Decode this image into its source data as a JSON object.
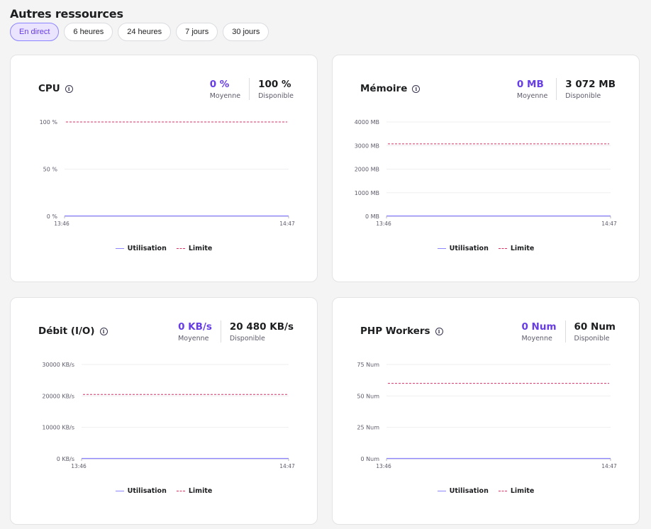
{
  "page": {
    "title": "Autres ressources"
  },
  "range_tabs": [
    {
      "label": "En direct",
      "active": true
    },
    {
      "label": "6 heures",
      "active": false
    },
    {
      "label": "24 heures",
      "active": false
    },
    {
      "label": "7 jours",
      "active": false
    },
    {
      "label": "30 jours",
      "active": false
    }
  ],
  "legend": {
    "usage_label": "Utilisation",
    "limit_label": "Limite"
  },
  "colors": {
    "accent": "#673de6",
    "usage_line": "#8c85ff",
    "limit_line": "#d63163"
  },
  "cards": [
    {
      "title": "CPU",
      "stats": [
        {
          "value": "0 %",
          "label": "Moyenne"
        },
        {
          "value": "100 %",
          "label": "Disponible"
        }
      ]
    },
    {
      "title": "Mémoire",
      "stats": [
        {
          "value": "0 MB",
          "label": "Moyenne"
        },
        {
          "value": "3 072 MB",
          "label": "Disponible"
        }
      ]
    },
    {
      "title": "Débit (I/O)",
      "stats": [
        {
          "value": "0 KB/s",
          "label": "Moyenne"
        },
        {
          "value": "20 480 KB/s",
          "label": "Disponible"
        }
      ]
    },
    {
      "title": "PHP Workers",
      "stats": [
        {
          "value": "0 Num",
          "label": "Moyenne"
        },
        {
          "value": "60 Num",
          "label": "Disponible"
        }
      ]
    }
  ],
  "chart_data": [
    {
      "type": "line",
      "x_ticks": [
        "13:46",
        "14:47"
      ],
      "y_ticks": [
        "0 %",
        "50 %",
        "100 %"
      ],
      "ylim": [
        0,
        100
      ],
      "series": [
        {
          "name": "Utilisation",
          "x": [
            "13:46",
            "14:47"
          ],
          "values": [
            0,
            0
          ]
        },
        {
          "name": "Limite",
          "x": [
            "13:46",
            "14:47"
          ],
          "values": [
            100,
            100
          ]
        }
      ]
    },
    {
      "type": "line",
      "x_ticks": [
        "13:46",
        "14:47"
      ],
      "y_ticks": [
        "0 MB",
        "1000 MB",
        "2000 MB",
        "3000 MB",
        "4000 MB"
      ],
      "ylim": [
        0,
        4000
      ],
      "series": [
        {
          "name": "Utilisation",
          "x": [
            "13:46",
            "14:47"
          ],
          "values": [
            0,
            0
          ]
        },
        {
          "name": "Limite",
          "x": [
            "13:46",
            "14:47"
          ],
          "values": [
            3072,
            3072
          ]
        }
      ]
    },
    {
      "type": "line",
      "x_ticks": [
        "13:46",
        "14:47"
      ],
      "y_ticks": [
        "0 KB/s",
        "10000 KB/s",
        "20000 KB/s",
        "30000 KB/s"
      ],
      "ylim": [
        0,
        30000
      ],
      "series": [
        {
          "name": "Utilisation",
          "x": [
            "13:46",
            "14:47"
          ],
          "values": [
            0,
            0
          ]
        },
        {
          "name": "Limite",
          "x": [
            "13:46",
            "14:47"
          ],
          "values": [
            20480,
            20480
          ]
        }
      ]
    },
    {
      "type": "line",
      "x_ticks": [
        "13:46",
        "14:47"
      ],
      "y_ticks": [
        "0 Num",
        "25 Num",
        "50 Num",
        "75 Num"
      ],
      "ylim": [
        0,
        75
      ],
      "series": [
        {
          "name": "Utilisation",
          "x": [
            "13:46",
            "14:47"
          ],
          "values": [
            0,
            0
          ]
        },
        {
          "name": "Limite",
          "x": [
            "13:46",
            "14:47"
          ],
          "values": [
            60,
            60
          ]
        }
      ]
    }
  ]
}
